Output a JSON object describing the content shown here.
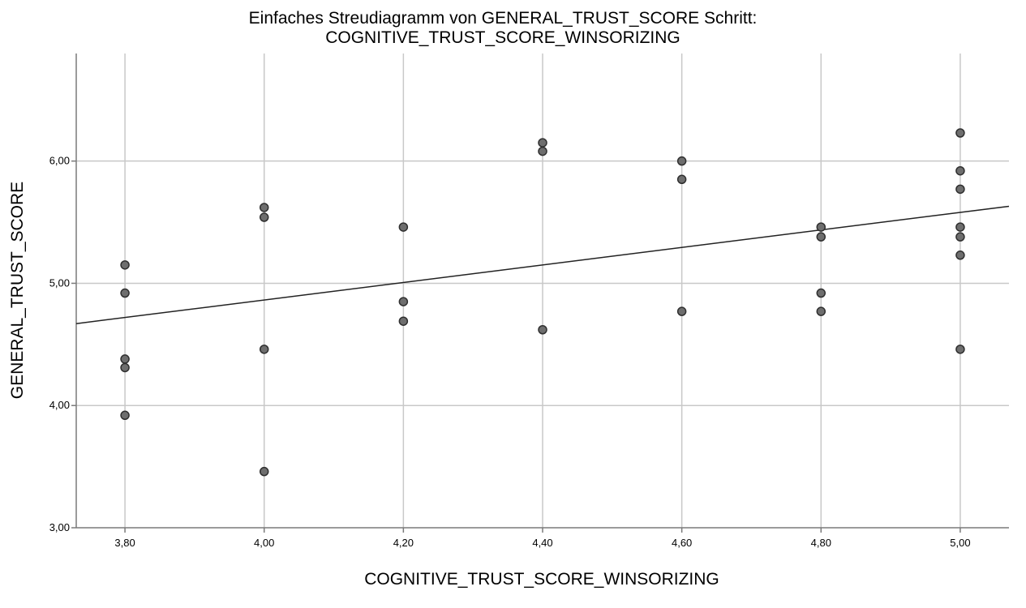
{
  "chart_data": {
    "type": "scatter",
    "title_line1": "Einfaches Streudiagramm  von GENERAL_TRUST_SCORE Schritt:",
    "title_line2": "COGNITIVE_TRUST_SCORE_WINSORIZING",
    "xlabel": "COGNITIVE_TRUST_SCORE_WINSORIZING",
    "ylabel": "GENERAL_TRUST_SCORE",
    "xlim": [
      3.73,
      5.07
    ],
    "ylim": [
      3.0,
      6.88
    ],
    "x_ticks": [
      {
        "value": 3.8,
        "label": "3,80"
      },
      {
        "value": 4.0,
        "label": "4,00"
      },
      {
        "value": 4.2,
        "label": "4,20"
      },
      {
        "value": 4.4,
        "label": "4,40"
      },
      {
        "value": 4.6,
        "label": "4,60"
      },
      {
        "value": 4.8,
        "label": "4,80"
      },
      {
        "value": 5.0,
        "label": "5,00"
      }
    ],
    "y_ticks": [
      {
        "value": 3.0,
        "label": "3,00"
      },
      {
        "value": 4.0,
        "label": "4,00"
      },
      {
        "value": 5.0,
        "label": "5,00"
      },
      {
        "value": 6.0,
        "label": "6,00"
      }
    ],
    "grid": true,
    "points": [
      {
        "x": 3.8,
        "y": 5.15
      },
      {
        "x": 3.8,
        "y": 4.92
      },
      {
        "x": 3.8,
        "y": 4.38
      },
      {
        "x": 3.8,
        "y": 4.31
      },
      {
        "x": 3.8,
        "y": 3.92
      },
      {
        "x": 4.0,
        "y": 5.62
      },
      {
        "x": 4.0,
        "y": 5.54
      },
      {
        "x": 4.0,
        "y": 4.46
      },
      {
        "x": 4.0,
        "y": 3.46
      },
      {
        "x": 4.2,
        "y": 5.46
      },
      {
        "x": 4.2,
        "y": 4.85
      },
      {
        "x": 4.2,
        "y": 4.69
      },
      {
        "x": 4.4,
        "y": 6.15
      },
      {
        "x": 4.4,
        "y": 6.08
      },
      {
        "x": 4.4,
        "y": 4.62
      },
      {
        "x": 4.6,
        "y": 6.0
      },
      {
        "x": 4.6,
        "y": 5.85
      },
      {
        "x": 4.6,
        "y": 4.77
      },
      {
        "x": 4.8,
        "y": 5.46
      },
      {
        "x": 4.8,
        "y": 5.38
      },
      {
        "x": 4.8,
        "y": 4.92
      },
      {
        "x": 4.8,
        "y": 4.77
      },
      {
        "x": 5.0,
        "y": 6.23
      },
      {
        "x": 5.0,
        "y": 5.92
      },
      {
        "x": 5.0,
        "y": 5.77
      },
      {
        "x": 5.0,
        "y": 5.46
      },
      {
        "x": 5.0,
        "y": 5.38
      },
      {
        "x": 5.0,
        "y": 5.23
      },
      {
        "x": 5.0,
        "y": 4.46
      }
    ],
    "fit_line": {
      "x1": 3.73,
      "y1": 4.67,
      "x2": 5.07,
      "y2": 5.63
    },
    "colors": {
      "point_fill": "#6e6e6e",
      "point_stroke": "#2f2f2f",
      "grid": "#c8c8c8",
      "fit_line": "#222222"
    }
  }
}
